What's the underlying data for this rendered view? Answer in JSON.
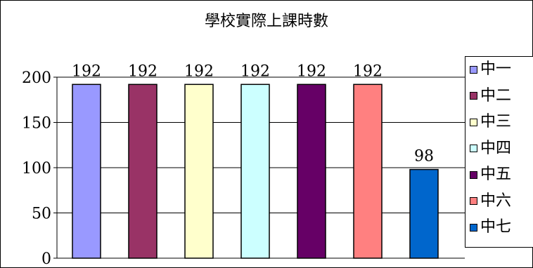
{
  "chart_data": {
    "type": "bar",
    "title": "學校實際上課時數",
    "categories": [
      "中一",
      "中二",
      "中三",
      "中四",
      "中五",
      "中六",
      "中七"
    ],
    "values": [
      192,
      192,
      192,
      192,
      192,
      192,
      98
    ],
    "data_labels": [
      "192",
      "192",
      "192",
      "192",
      "192",
      "192",
      "98"
    ],
    "ylim": [
      0,
      200
    ],
    "yticks": [
      "0",
      "50",
      "100",
      "150",
      "200"
    ],
    "grid": true,
    "legend_position": "right",
    "colors": [
      "#9999ff",
      "#993366",
      "#ffffcc",
      "#ccffff",
      "#660066",
      "#ff8080",
      "#0066cc"
    ]
  }
}
